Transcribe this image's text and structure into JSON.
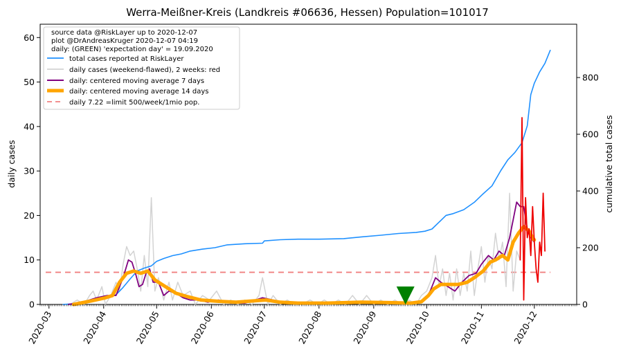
{
  "chart_data": {
    "type": "line",
    "title": "Werra-Meißner-Kreis (Landkreis #06636, Hessen) Population=101017",
    "ylabel_left": "daily cases",
    "ylabel_right": "cumulative total cases",
    "colors": {
      "ylabel_left": "#800080",
      "ylabel_right": "#1e90ff",
      "total": "#1e90ff",
      "daily": "#d3d3d3",
      "daily_recent": "#ee0000",
      "ma7": "#800080",
      "ma14": "#ffa500",
      "limit": "#f08080",
      "marker": "#008000"
    },
    "x_axis": {
      "range": [
        "2020-02-25",
        "2020-12-25"
      ],
      "ticks": [
        "2020-03",
        "2020-04",
        "2020-05",
        "2020-06",
        "2020-07",
        "2020-08",
        "2020-09",
        "2020-10",
        "2020-11",
        "2020-12"
      ]
    },
    "y_left": {
      "range": [
        0,
        63
      ],
      "ticks": [
        "0",
        "10",
        "20",
        "30",
        "40",
        "50",
        "60"
      ]
    },
    "y_right": {
      "range": [
        0,
        988
      ],
      "ticks": [
        "0",
        "200",
        "400",
        "600",
        "800"
      ]
    },
    "legend": {
      "position": "top-left",
      "header": [
        "source data @RiskLayer up to 2020-12-07",
        "plot @DrAndreasKruger 2020-12-07 04:19",
        "daily: (GREEN) 'expectation day' = 19.09.2020"
      ],
      "entries": [
        {
          "key": "total",
          "label": "total cases reported at RiskLayer"
        },
        {
          "key": "daily",
          "label": "daily cases (weekend-flawed), 2 weeks: red"
        },
        {
          "key": "ma7",
          "label": "daily: centered moving average 7 days"
        },
        {
          "key": "ma14",
          "label": "daily: centered moving average 14 days"
        },
        {
          "key": "limit",
          "label": "daily 7.22 =limit 500/week/1mio pop."
        }
      ]
    },
    "limit_value": 7.22,
    "expectation_day": {
      "date": "2020-09-19",
      "y": 2
    },
    "series": {
      "total": {
        "axis": "right",
        "points": [
          [
            "2020-03-09",
            0
          ],
          [
            "2020-03-14",
            2
          ],
          [
            "2020-03-20",
            6
          ],
          [
            "2020-03-27",
            18
          ],
          [
            "2020-04-01",
            28
          ],
          [
            "2020-04-08",
            34
          ],
          [
            "2020-04-12",
            60
          ],
          [
            "2020-04-16",
            90
          ],
          [
            "2020-04-20",
            118
          ],
          [
            "2020-04-24",
            128
          ],
          [
            "2020-04-28",
            136
          ],
          [
            "2020-05-01",
            152
          ],
          [
            "2020-05-05",
            162
          ],
          [
            "2020-05-10",
            172
          ],
          [
            "2020-05-15",
            178
          ],
          [
            "2020-05-20",
            188
          ],
          [
            "2020-05-27",
            195
          ],
          [
            "2020-06-03",
            200
          ],
          [
            "2020-06-10",
            210
          ],
          [
            "2020-06-20",
            214
          ],
          [
            "2020-06-30",
            216
          ],
          [
            "2020-07-01",
            224
          ],
          [
            "2020-07-10",
            228
          ],
          [
            "2020-07-20",
            230
          ],
          [
            "2020-08-01",
            230
          ],
          [
            "2020-08-15",
            232
          ],
          [
            "2020-08-25",
            238
          ],
          [
            "2020-09-05",
            244
          ],
          [
            "2020-09-15",
            250
          ],
          [
            "2020-09-25",
            254
          ],
          [
            "2020-09-30",
            258
          ],
          [
            "2020-10-04",
            266
          ],
          [
            "2020-10-08",
            290
          ],
          [
            "2020-10-12",
            314
          ],
          [
            "2020-10-16",
            320
          ],
          [
            "2020-10-22",
            334
          ],
          [
            "2020-10-28",
            360
          ],
          [
            "2020-11-02",
            390
          ],
          [
            "2020-11-07",
            418
          ],
          [
            "2020-11-12",
            472
          ],
          [
            "2020-11-16",
            510
          ],
          [
            "2020-11-20",
            536
          ],
          [
            "2020-11-24",
            570
          ],
          [
            "2020-11-27",
            630
          ],
          [
            "2020-11-29",
            740
          ],
          [
            "2020-12-01",
            780
          ],
          [
            "2020-12-04",
            820
          ],
          [
            "2020-12-07",
            850
          ],
          [
            "2020-12-10",
            896
          ]
        ]
      },
      "daily": {
        "axis": "left",
        "points": [
          [
            "2020-03-09",
            0
          ],
          [
            "2020-03-13",
            0
          ],
          [
            "2020-03-17",
            1
          ],
          [
            "2020-03-21",
            0
          ],
          [
            "2020-03-24",
            2
          ],
          [
            "2020-03-26",
            3
          ],
          [
            "2020-03-28",
            1
          ],
          [
            "2020-03-31",
            4
          ],
          [
            "2020-04-02",
            0
          ],
          [
            "2020-04-05",
            2
          ],
          [
            "2020-04-08",
            5
          ],
          [
            "2020-04-10",
            3
          ],
          [
            "2020-04-12",
            9
          ],
          [
            "2020-04-14",
            13
          ],
          [
            "2020-04-16",
            11
          ],
          [
            "2020-04-18",
            12
          ],
          [
            "2020-04-20",
            8
          ],
          [
            "2020-04-22",
            3
          ],
          [
            "2020-04-24",
            11
          ],
          [
            "2020-04-26",
            4
          ],
          [
            "2020-04-28",
            24
          ],
          [
            "2020-04-30",
            3
          ],
          [
            "2020-05-02",
            6
          ],
          [
            "2020-05-05",
            1
          ],
          [
            "2020-05-08",
            5
          ],
          [
            "2020-05-10",
            1
          ],
          [
            "2020-05-13",
            5
          ],
          [
            "2020-05-16",
            2
          ],
          [
            "2020-05-20",
            3
          ],
          [
            "2020-05-23",
            0
          ],
          [
            "2020-05-27",
            2
          ],
          [
            "2020-05-31",
            1
          ],
          [
            "2020-06-04",
            3
          ],
          [
            "2020-06-08",
            0
          ],
          [
            "2020-06-12",
            1
          ],
          [
            "2020-06-16",
            0
          ],
          [
            "2020-06-20",
            1
          ],
          [
            "2020-06-24",
            0
          ],
          [
            "2020-06-28",
            2
          ],
          [
            "2020-06-30",
            6
          ],
          [
            "2020-07-03",
            0
          ],
          [
            "2020-07-06",
            2
          ],
          [
            "2020-07-10",
            0
          ],
          [
            "2020-07-14",
            1
          ],
          [
            "2020-07-18",
            0
          ],
          [
            "2020-07-22",
            0
          ],
          [
            "2020-07-27",
            1
          ],
          [
            "2020-07-31",
            0
          ],
          [
            "2020-08-04",
            1
          ],
          [
            "2020-08-08",
            0
          ],
          [
            "2020-08-12",
            1
          ],
          [
            "2020-08-16",
            0
          ],
          [
            "2020-08-20",
            2
          ],
          [
            "2020-08-24",
            0
          ],
          [
            "2020-08-28",
            2
          ],
          [
            "2020-09-01",
            0
          ],
          [
            "2020-09-05",
            1
          ],
          [
            "2020-09-09",
            0
          ],
          [
            "2020-09-13",
            1
          ],
          [
            "2020-09-17",
            0
          ],
          [
            "2020-09-21",
            1
          ],
          [
            "2020-09-25",
            0
          ],
          [
            "2020-09-28",
            2
          ],
          [
            "2020-10-01",
            3
          ],
          [
            "2020-10-04",
            6
          ],
          [
            "2020-10-06",
            11
          ],
          [
            "2020-10-08",
            4
          ],
          [
            "2020-10-10",
            8
          ],
          [
            "2020-10-12",
            2
          ],
          [
            "2020-10-14",
            7
          ],
          [
            "2020-10-16",
            1
          ],
          [
            "2020-10-18",
            8
          ],
          [
            "2020-10-20",
            2
          ],
          [
            "2020-10-22",
            7
          ],
          [
            "2020-10-24",
            3
          ],
          [
            "2020-10-26",
            12
          ],
          [
            "2020-10-28",
            2
          ],
          [
            "2020-10-30",
            8
          ],
          [
            "2020-11-01",
            13
          ],
          [
            "2020-11-03",
            5
          ],
          [
            "2020-11-05",
            11
          ],
          [
            "2020-11-07",
            8
          ],
          [
            "2020-11-09",
            16
          ],
          [
            "2020-11-11",
            10
          ],
          [
            "2020-11-13",
            14
          ],
          [
            "2020-11-15",
            4
          ],
          [
            "2020-11-17",
            25
          ],
          [
            "2020-11-19",
            3
          ],
          [
            "2020-11-21",
            12
          ],
          [
            "2020-11-23",
            10
          ]
        ]
      },
      "daily_recent": {
        "axis": "left",
        "points": [
          [
            "2020-11-23",
            10
          ],
          [
            "2020-11-24",
            42
          ],
          [
            "2020-11-25",
            1
          ],
          [
            "2020-11-26",
            24
          ],
          [
            "2020-11-27",
            15
          ],
          [
            "2020-11-28",
            17
          ],
          [
            "2020-11-29",
            11
          ],
          [
            "2020-11-30",
            22
          ],
          [
            "2020-12-01",
            14
          ],
          [
            "2020-12-02",
            8
          ],
          [
            "2020-12-03",
            5
          ],
          [
            "2020-12-04",
            14
          ],
          [
            "2020-12-05",
            11
          ],
          [
            "2020-12-06",
            25
          ],
          [
            "2020-12-07",
            12
          ]
        ]
      },
      "ma7": {
        "axis": "left",
        "points": [
          [
            "2020-03-12",
            0
          ],
          [
            "2020-03-20",
            0.5
          ],
          [
            "2020-03-28",
            1.5
          ],
          [
            "2020-04-03",
            2
          ],
          [
            "2020-04-08",
            2
          ],
          [
            "2020-04-12",
            6
          ],
          [
            "2020-04-15",
            10
          ],
          [
            "2020-04-17",
            9.5
          ],
          [
            "2020-04-19",
            7
          ],
          [
            "2020-04-21",
            4
          ],
          [
            "2020-04-23",
            4.5
          ],
          [
            "2020-04-25",
            7
          ],
          [
            "2020-04-27",
            8
          ],
          [
            "2020-04-29",
            5
          ],
          [
            "2020-05-02",
            5
          ],
          [
            "2020-05-05",
            2
          ],
          [
            "2020-05-08",
            3
          ],
          [
            "2020-05-12",
            2.5
          ],
          [
            "2020-05-16",
            1.5
          ],
          [
            "2020-05-20",
            1
          ],
          [
            "2020-05-25",
            1
          ],
          [
            "2020-05-30",
            0.5
          ],
          [
            "2020-06-05",
            1
          ],
          [
            "2020-06-12",
            0.3
          ],
          [
            "2020-06-20",
            0.3
          ],
          [
            "2020-06-26",
            1
          ],
          [
            "2020-06-30",
            1.5
          ],
          [
            "2020-07-06",
            1
          ],
          [
            "2020-07-12",
            0.5
          ],
          [
            "2020-07-20",
            0.2
          ],
          [
            "2020-08-01",
            0.3
          ],
          [
            "2020-08-15",
            0.4
          ],
          [
            "2020-08-30",
            0.5
          ],
          [
            "2020-09-15",
            0.4
          ],
          [
            "2020-09-25",
            0.5
          ],
          [
            "2020-09-30",
            1
          ],
          [
            "2020-10-03",
            3
          ],
          [
            "2020-10-06",
            6
          ],
          [
            "2020-10-09",
            5
          ],
          [
            "2020-10-13",
            4
          ],
          [
            "2020-10-17",
            3
          ],
          [
            "2020-10-21",
            5
          ],
          [
            "2020-10-25",
            6.5
          ],
          [
            "2020-10-29",
            7
          ],
          [
            "2020-11-01",
            9
          ],
          [
            "2020-11-05",
            11
          ],
          [
            "2020-11-08",
            10
          ],
          [
            "2020-11-11",
            12
          ],
          [
            "2020-11-14",
            11
          ],
          [
            "2020-11-17",
            15
          ],
          [
            "2020-11-19",
            19
          ],
          [
            "2020-11-21",
            23
          ],
          [
            "2020-11-23",
            22
          ],
          [
            "2020-11-25",
            22
          ],
          [
            "2020-11-27",
            17
          ],
          [
            "2020-11-29",
            15
          ],
          [
            "2020-12-01",
            14
          ]
        ]
      },
      "ma14": {
        "axis": "left",
        "points": [
          [
            "2020-03-15",
            0
          ],
          [
            "2020-03-25",
            0.8
          ],
          [
            "2020-04-02",
            1.5
          ],
          [
            "2020-04-06",
            2
          ],
          [
            "2020-04-10",
            5
          ],
          [
            "2020-04-14",
            7
          ],
          [
            "2020-04-18",
            7.5
          ],
          [
            "2020-04-22",
            7
          ],
          [
            "2020-04-26",
            7.5
          ],
          [
            "2020-04-30",
            5.5
          ],
          [
            "2020-05-04",
            4.5
          ],
          [
            "2020-05-08",
            3.5
          ],
          [
            "2020-05-12",
            2.5
          ],
          [
            "2020-05-18",
            1.8
          ],
          [
            "2020-05-26",
            1
          ],
          [
            "2020-06-05",
            0.7
          ],
          [
            "2020-06-15",
            0.5
          ],
          [
            "2020-06-25",
            0.8
          ],
          [
            "2020-07-02",
            1
          ],
          [
            "2020-07-10",
            0.5
          ],
          [
            "2020-07-20",
            0.3
          ],
          [
            "2020-08-05",
            0.3
          ],
          [
            "2020-08-25",
            0.5
          ],
          [
            "2020-09-10",
            0.4
          ],
          [
            "2020-09-22",
            0.3
          ],
          [
            "2020-09-28",
            0.6
          ],
          [
            "2020-10-02",
            2
          ],
          [
            "2020-10-05",
            3.5
          ],
          [
            "2020-10-09",
            4.5
          ],
          [
            "2020-10-14",
            4.5
          ],
          [
            "2020-10-19",
            4.5
          ],
          [
            "2020-10-24",
            5
          ],
          [
            "2020-10-28",
            6
          ],
          [
            "2020-11-02",
            7.5
          ],
          [
            "2020-11-06",
            9.5
          ],
          [
            "2020-11-09",
            10
          ],
          [
            "2020-11-13",
            11
          ],
          [
            "2020-11-16",
            10
          ],
          [
            "2020-11-19",
            14
          ],
          [
            "2020-11-22",
            16
          ],
          [
            "2020-11-25",
            17.5
          ],
          [
            "2020-11-28",
            16.5
          ],
          [
            "2020-11-30",
            15
          ],
          [
            "2020-12-01",
            14.5
          ]
        ]
      }
    }
  }
}
